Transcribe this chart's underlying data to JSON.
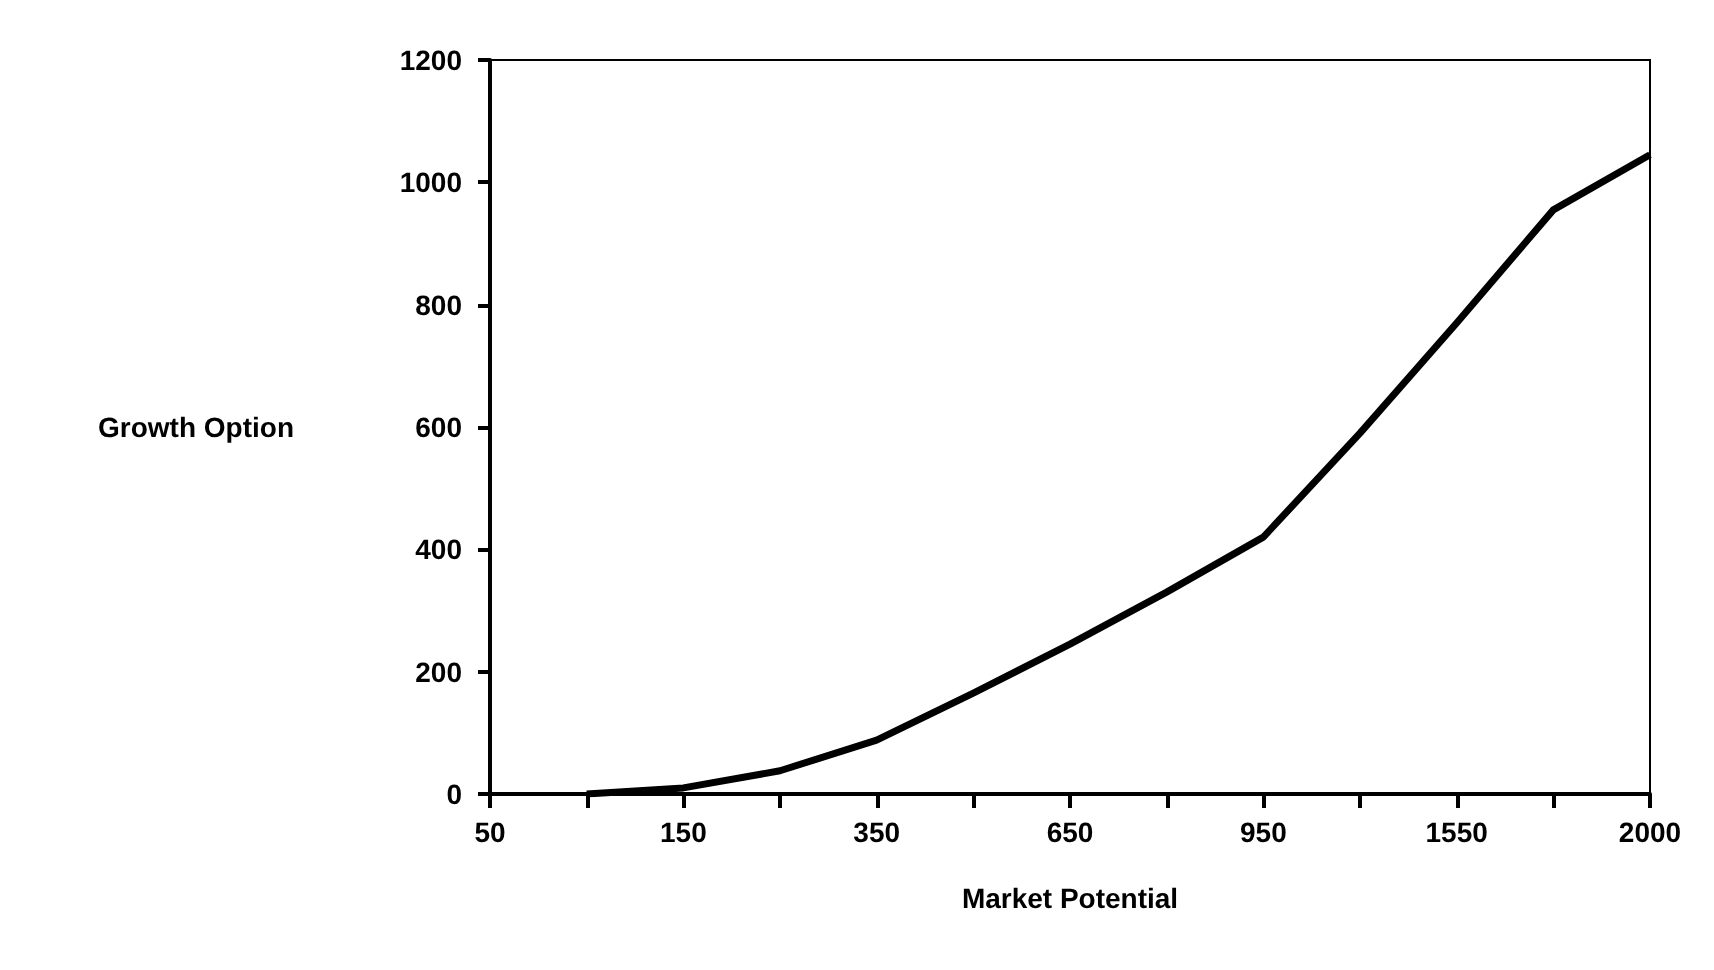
{
  "chart_data": {
    "type": "line",
    "xlabel": "Market Potential",
    "ylabel": "Growth Option",
    "categories": [
      "50",
      null,
      "150",
      null,
      "350",
      null,
      "650",
      null,
      "950",
      null,
      "1550",
      null,
      "2000"
    ],
    "series": [
      {
        "color": "#000000",
        "values": [
          null,
          0,
          10,
          38,
          88,
          165,
          245,
          330,
          420,
          590,
          770,
          955,
          1045
        ]
      }
    ],
    "ylim": [
      0,
      1200
    ],
    "yticks": [
      0,
      200,
      400,
      600,
      800,
      1000,
      1200
    ],
    "grid": false,
    "marker": "none",
    "line_style": "solid"
  }
}
